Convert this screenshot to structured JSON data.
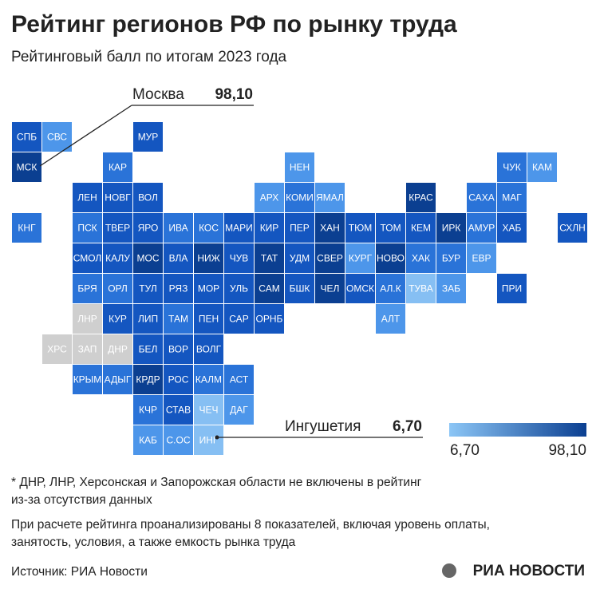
{
  "header": {
    "title": "Рейтинг регионов РФ по рынку труда",
    "subtitle": "Рейтинговый балл по итогам 2023 года"
  },
  "callouts": [
    {
      "label": "Москва",
      "value": "98,10"
    },
    {
      "label": "Ингушетия",
      "value": "6,70"
    }
  ],
  "legend": {
    "min_label": "6,70",
    "max_label": "98,10",
    "color_from": "#8cc6f6",
    "color_to": "#0b3f91"
  },
  "tiles": [
    {
      "label": "СПБ",
      "color": "#1456c0"
    },
    {
      "label": "СВС",
      "color": "#4d96ea"
    },
    {
      "label": "МУР",
      "color": "#1456c0"
    },
    {
      "label": "МСК",
      "color": "#0b3f91"
    },
    {
      "label": "КАР",
      "color": "#2a73d8"
    },
    {
      "label": "НЕН",
      "color": "#4d96ea"
    },
    {
      "label": "ЧУК",
      "color": "#2a73d8"
    },
    {
      "label": "КАМ",
      "color": "#4d96ea"
    },
    {
      "label": "ЛЕН",
      "color": "#1456c0"
    },
    {
      "label": "НОВГ",
      "color": "#1456c0"
    },
    {
      "label": "ВОЛ",
      "color": "#1456c0"
    },
    {
      "label": "АРХ",
      "color": "#4d96ea"
    },
    {
      "label": "КОМИ",
      "color": "#2a73d8"
    },
    {
      "label": "ЯМАЛ",
      "color": "#4d96ea"
    },
    {
      "label": "КРАС",
      "color": "#0b3f91"
    },
    {
      "label": "САХА",
      "color": "#2a73d8"
    },
    {
      "label": "МАГ",
      "color": "#2a73d8"
    },
    {
      "label": "КНГ",
      "color": "#2a73d8"
    },
    {
      "label": "ПСК",
      "color": "#2a73d8"
    },
    {
      "label": "ТВЕР",
      "color": "#1456c0"
    },
    {
      "label": "ЯРО",
      "color": "#1456c0"
    },
    {
      "label": "ИВА",
      "color": "#2a73d8"
    },
    {
      "label": "КОС",
      "color": "#2a73d8"
    },
    {
      "label": "МАРИ",
      "color": "#1456c0"
    },
    {
      "label": "КИР",
      "color": "#1456c0"
    },
    {
      "label": "ПЕР",
      "color": "#1456c0"
    },
    {
      "label": "ХАН",
      "color": "#0b3f91"
    },
    {
      "label": "ТЮМ",
      "color": "#1456c0"
    },
    {
      "label": "ТОМ",
      "color": "#1456c0"
    },
    {
      "label": "КЕМ",
      "color": "#1456c0"
    },
    {
      "label": "ИРК",
      "color": "#0b3f91"
    },
    {
      "label": "АМУР",
      "color": "#2a73d8"
    },
    {
      "label": "ХАБ",
      "color": "#1456c0"
    },
    {
      "label": "СХЛН",
      "color": "#1456c0"
    },
    {
      "label": "СМОЛ",
      "color": "#1456c0"
    },
    {
      "label": "КАЛУ",
      "color": "#1456c0"
    },
    {
      "label": "МОС",
      "color": "#0b3f91"
    },
    {
      "label": "ВЛА",
      "color": "#1456c0"
    },
    {
      "label": "НИЖ",
      "color": "#0b3f91"
    },
    {
      "label": "ЧУВ",
      "color": "#1456c0"
    },
    {
      "label": "ТАТ",
      "color": "#0b3f91"
    },
    {
      "label": "УДМ",
      "color": "#1456c0"
    },
    {
      "label": "СВЕР",
      "color": "#0b3f91"
    },
    {
      "label": "КУРГ",
      "color": "#4d96ea"
    },
    {
      "label": "НОВО",
      "color": "#0b3f91"
    },
    {
      "label": "ХАК",
      "color": "#2a73d8"
    },
    {
      "label": "БУР",
      "color": "#2a73d8"
    },
    {
      "label": "ЕВР",
      "color": "#4d96ea"
    },
    {
      "label": "БРЯ",
      "color": "#2a73d8"
    },
    {
      "label": "ОРЛ",
      "color": "#2a73d8"
    },
    {
      "label": "ТУЛ",
      "color": "#1456c0"
    },
    {
      "label": "РЯЗ",
      "color": "#1456c0"
    },
    {
      "label": "МОР",
      "color": "#1456c0"
    },
    {
      "label": "УЛЬ",
      "color": "#1456c0"
    },
    {
      "label": "САМ",
      "color": "#0b3f91"
    },
    {
      "label": "БШК",
      "color": "#1456c0"
    },
    {
      "label": "ЧЕЛ",
      "color": "#0b3f91"
    },
    {
      "label": "ОМСК",
      "color": "#1456c0"
    },
    {
      "label": "АЛ.К",
      "color": "#2a73d8"
    },
    {
      "label": "ТУВА",
      "color": "#86bff3"
    },
    {
      "label": "ЗАБ",
      "color": "#4d96ea"
    },
    {
      "label": "ПРИ",
      "color": "#1456c0"
    },
    {
      "label": "ЛНР",
      "color": "#cfcfcf"
    },
    {
      "label": "КУР",
      "color": "#1456c0"
    },
    {
      "label": "ЛИП",
      "color": "#1456c0"
    },
    {
      "label": "ТАМ",
      "color": "#2a73d8"
    },
    {
      "label": "ПЕН",
      "color": "#1456c0"
    },
    {
      "label": "САР",
      "color": "#1456c0"
    },
    {
      "label": "ОРНБ",
      "color": "#1456c0"
    },
    {
      "label": "АЛТ",
      "color": "#4d96ea"
    },
    {
      "label": "ХРС",
      "color": "#cfcfcf"
    },
    {
      "label": "ЗАП",
      "color": "#cfcfcf"
    },
    {
      "label": "ДНР",
      "color": "#cfcfcf"
    },
    {
      "label": "БЕЛ",
      "color": "#1456c0"
    },
    {
      "label": "ВОР",
      "color": "#1456c0"
    },
    {
      "label": "ВОЛГ",
      "color": "#1456c0"
    },
    {
      "label": "КРЫМ",
      "color": "#2a73d8"
    },
    {
      "label": "АДЫГ",
      "color": "#2a73d8"
    },
    {
      "label": "КРДР",
      "color": "#0b3f91"
    },
    {
      "label": "РОС",
      "color": "#1456c0"
    },
    {
      "label": "КАЛМ",
      "color": "#2a73d8"
    },
    {
      "label": "АСТ",
      "color": "#2a73d8"
    },
    {
      "label": "КЧР",
      "color": "#2a73d8"
    },
    {
      "label": "СТАВ",
      "color": "#1456c0"
    },
    {
      "label": "ЧЕЧ",
      "color": "#86bff3"
    },
    {
      "label": "ДАГ",
      "color": "#4d96ea"
    },
    {
      "label": "КАБ",
      "color": "#4d96ea"
    },
    {
      "label": "С.ОС",
      "color": "#4d96ea"
    },
    {
      "label": "ИНГ",
      "color": "#86bff3"
    }
  ],
  "notes": [
    "* ДНР, ЛНР, Херсонская и Запорожская области не включены в рейтинг",
    "из-за отсутствия данных",
    "При расчете рейтинга проанализированы 8 показателей, включая уровень оплаты,",
    "занятость, условия, а также емкость рынка труда"
  ],
  "footer": {
    "source": "Источник: РИА Новости",
    "logo": "РИА НОВОСТИ"
  }
}
